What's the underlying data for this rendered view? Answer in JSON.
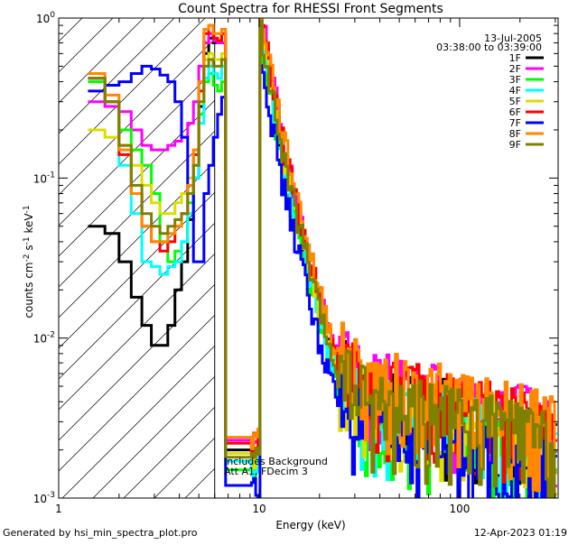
{
  "chart_data": {
    "type": "line",
    "title": "Count Spectra for RHESSI Front Segments",
    "xlabel": "Energy (keV)",
    "ylabel_parts": [
      "counts cm",
      "-2",
      " s",
      "-1",
      " keV",
      "-1"
    ],
    "x_scale": "log",
    "y_scale": "log",
    "xlim": [
      1,
      310
    ],
    "ylim": [
      0.001,
      1
    ],
    "x_tick_labels": [
      {
        "value": 1,
        "label": "1"
      },
      {
        "value": 10,
        "label": "10"
      },
      {
        "value": 100,
        "label": "100"
      }
    ],
    "y_tick_labels": [
      {
        "value": 1,
        "base": "10",
        "exp": "0"
      },
      {
        "value": 0.1,
        "base": "10",
        "exp": "-1"
      },
      {
        "value": 0.01,
        "base": "10",
        "exp": "-2"
      },
      {
        "value": 0.001,
        "base": "10",
        "exp": "-3"
      }
    ],
    "date": "13-Jul-2005",
    "time_range": "03:38:00 to 03:39:00",
    "annotations": [
      "Includes Background",
      "Att A1, FDecim 3"
    ],
    "shaded_region": {
      "x_max": 6,
      "pattern": "diagonal-hatch"
    },
    "reference_line_x": 6,
    "legend_position": "top-right",
    "series": [
      {
        "name": "1F",
        "color": "#000000",
        "low": [
          0.05,
          0.045,
          0.03,
          0.018,
          0.012,
          0.009,
          0.009,
          0.012,
          0.02,
          0.03,
          0.055,
          0.1,
          0.28,
          0.6,
          0.75,
          0.7,
          0.72,
          0.8
        ],
        "mult": 1.0
      },
      {
        "name": "2F",
        "color": "#ff00ff",
        "low": [
          0.3,
          0.28,
          0.26,
          0.2,
          0.16,
          0.15,
          0.15,
          0.16,
          0.17,
          0.18,
          0.22,
          0.3,
          0.5,
          0.7,
          0.8,
          0.72,
          0.7,
          0.7
        ],
        "mult": 1.15
      },
      {
        "name": "3F",
        "color": "#00ff00",
        "low": [
          0.4,
          0.3,
          0.2,
          0.15,
          0.12,
          0.08,
          0.04,
          0.03,
          0.035,
          0.04,
          0.07,
          0.12,
          0.25,
          0.4,
          0.45,
          0.38,
          0.35,
          0.4
        ],
        "mult": 0.75
      },
      {
        "name": "4F",
        "color": "#00ffff",
        "low": [
          0.42,
          0.3,
          0.12,
          0.06,
          0.03,
          0.028,
          0.025,
          0.028,
          0.03,
          0.04,
          0.06,
          0.1,
          0.22,
          0.42,
          0.5,
          0.45,
          0.42,
          0.5
        ],
        "mult": 0.85
      },
      {
        "name": "5F",
        "color": "#dddd00",
        "low": [
          0.2,
          0.18,
          0.16,
          0.12,
          0.09,
          0.07,
          0.06,
          0.06,
          0.07,
          0.08,
          0.1,
          0.15,
          0.3,
          0.55,
          0.6,
          0.55,
          0.55,
          0.6
        ],
        "mult": 0.95
      },
      {
        "name": "6F",
        "color": "#ff0000",
        "low": [
          0.42,
          0.3,
          0.14,
          0.08,
          0.05,
          0.04,
          0.035,
          0.04,
          0.05,
          0.06,
          0.08,
          0.14,
          0.35,
          0.8,
          0.9,
          0.75,
          0.72,
          0.8
        ],
        "mult": 1.1
      },
      {
        "name": "7F",
        "color": "#0000ff",
        "low": [
          0.35,
          0.38,
          0.4,
          0.45,
          0.5,
          0.48,
          0.44,
          0.4,
          0.3,
          0.18,
          0.08,
          0.03,
          0.03,
          0.08,
          0.12,
          0.18,
          0.25,
          0.32
        ],
        "mult": 0.6
      },
      {
        "name": "8F",
        "color": "#ff8800",
        "low": [
          0.45,
          0.33,
          0.15,
          0.08,
          0.05,
          0.04,
          0.04,
          0.045,
          0.05,
          0.06,
          0.09,
          0.15,
          0.4,
          0.85,
          0.9,
          0.8,
          0.8,
          0.85
        ],
        "mult": 1.2
      },
      {
        "name": "9F",
        "color": "#808000",
        "low": [
          0.42,
          0.3,
          0.16,
          0.09,
          0.06,
          0.05,
          0.045,
          0.05,
          0.055,
          0.06,
          0.08,
          0.12,
          0.3,
          0.5,
          0.55,
          0.5,
          0.5,
          0.55
        ],
        "mult": 0.9
      }
    ],
    "x_low_start": 1.4,
    "x_low_step": 0.3,
    "decay_points": [
      [
        10,
        1
      ],
      [
        11,
        0.5
      ],
      [
        13,
        0.15
      ],
      [
        16,
        0.05
      ],
      [
        20,
        0.015
      ],
      [
        25,
        0.006
      ],
      [
        35,
        0.004
      ],
      [
        60,
        0.0035
      ],
      [
        100,
        0.003
      ],
      [
        150,
        0.0027
      ],
      [
        200,
        0.0025
      ],
      [
        300,
        0.002
      ]
    ]
  },
  "footer": {
    "generated_by": "Generated by hsi_min_spectra_plot.pro",
    "timestamp": "12-Apr-2023 01:19"
  }
}
